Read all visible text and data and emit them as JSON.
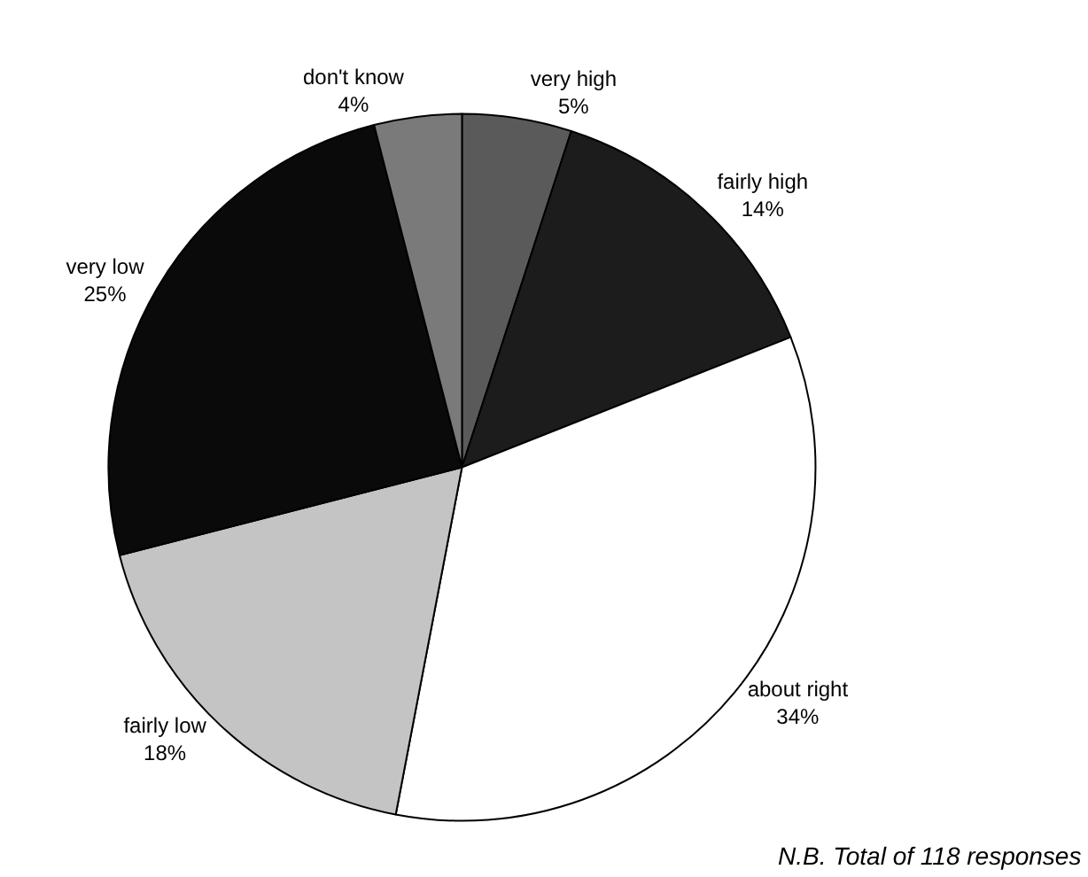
{
  "chart_data": {
    "type": "pie",
    "categories": [
      "very high",
      "fairly high",
      "about right",
      "fairly low",
      "very low",
      "don't know"
    ],
    "values": [
      5,
      14,
      34,
      18,
      25,
      4
    ],
    "value_labels": [
      "5%",
      "14%",
      "34%",
      "18%",
      "25%",
      "4%"
    ],
    "colors": [
      "#5a5a5a",
      "#1c1c1c",
      "#ffffff",
      "#c4c4c4",
      "#0a0a0a",
      "#7a7a7a"
    ],
    "legend": false,
    "annotations": [
      "N.B. Total of 118 responses"
    ]
  }
}
